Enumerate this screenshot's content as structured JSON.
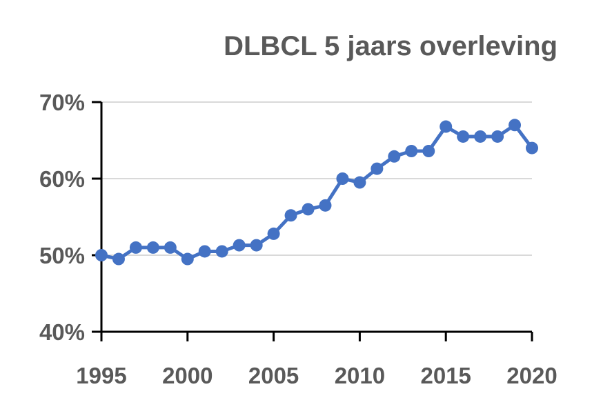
{
  "chart_data": {
    "type": "line",
    "title": "DLBCL 5 jaars overleving",
    "xlabel": "",
    "ylabel": "",
    "x": [
      1995,
      1996,
      1997,
      1998,
      1999,
      2000,
      2001,
      2002,
      2003,
      2004,
      2005,
      2006,
      2007,
      2008,
      2009,
      2010,
      2011,
      2012,
      2013,
      2014,
      2015,
      2016,
      2017,
      2018,
      2019,
      2020
    ],
    "series": [
      {
        "values": [
          50.0,
          49.5,
          51.0,
          51.0,
          51.0,
          49.5,
          50.5,
          50.5,
          51.3,
          51.3,
          52.8,
          55.2,
          56.0,
          56.5,
          60.0,
          59.5,
          61.3,
          62.9,
          63.6,
          63.6,
          66.8,
          65.5,
          65.5,
          65.5,
          67.0,
          64.0
        ]
      }
    ],
    "xlim": [
      1995,
      2020
    ],
    "ylim": [
      40,
      70
    ],
    "x_ticks": [
      "1995",
      "2000",
      "2005",
      "2010",
      "2015",
      "2020"
    ],
    "y_ticks": [
      "40%",
      "50%",
      "60%",
      "70%"
    ],
    "grid": true,
    "colors": {
      "line": "#4472C4",
      "text": "#595959",
      "grid": "#D9D9D9",
      "axis": "#000000"
    }
  }
}
